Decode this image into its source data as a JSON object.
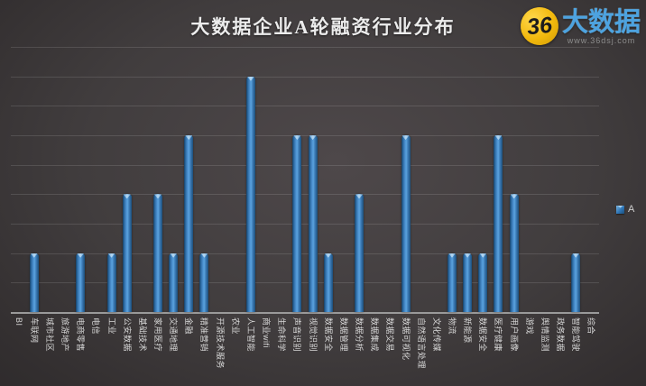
{
  "title": "大数据企业A轮融资行业分布",
  "logo": {
    "circle_text": "36",
    "brand_text": "大数据",
    "site_text": "www.36dsj.com"
  },
  "legend": {
    "series_label": "A"
  },
  "colors": {
    "bar_main": "#2e75b6",
    "bar_light": "#5ba3dd",
    "bar_dark": "#1c4e79",
    "bar_cap_highlight": "#b8d9f2",
    "background_center": "#4e484a",
    "background_edge": "#282627",
    "axis_line": "#9a9a9a",
    "gridline": "#5f5b5d",
    "title_text": "#ececec",
    "category_label_text": "#d6d6d6",
    "logo_yellow": "#f2b90d",
    "logo_blue": "#4da3e0"
  },
  "chart_data": {
    "type": "bar",
    "title": "大数据企业A轮融资行业分布",
    "series_name": "A",
    "categories": [
      "BI",
      "车联网",
      "城市社区",
      "旅游地产",
      "电商零售",
      "电信",
      "工业",
      "公安数据",
      "基础技术",
      "家用医疗",
      "交通地理",
      "金融",
      "精准营销",
      "开源技术服务",
      "农业",
      "人工智能",
      "商业wifi",
      "生命科学",
      "声音识别",
      "视觉识别",
      "数据安全",
      "数据管理",
      "数据分析",
      "数据集成",
      "数据交易",
      "数据可视化",
      "自然语言处理",
      "文化传媒",
      "物流",
      "新能源",
      "数据安全",
      "医疗健康",
      "用户画像",
      "游戏",
      "舆情监测",
      "政务数据",
      "智能驾驶",
      "综合"
    ],
    "values": [
      0,
      1,
      0,
      0,
      1,
      0,
      1,
      2,
      0,
      2,
      1,
      3,
      1,
      0,
      0,
      4,
      0,
      0,
      3,
      3,
      1,
      0,
      2,
      0,
      0,
      3,
      0,
      0,
      1,
      1,
      1,
      3,
      2,
      0,
      0,
      0,
      1,
      0
    ],
    "xlabel": "",
    "ylabel": "",
    "ylim": [
      0,
      4.5
    ],
    "gridline_interval": 0.5,
    "grid": "horizontal",
    "y_axis_tick_labels": "none",
    "x_label_rotation": 90,
    "legend_position": "right"
  }
}
